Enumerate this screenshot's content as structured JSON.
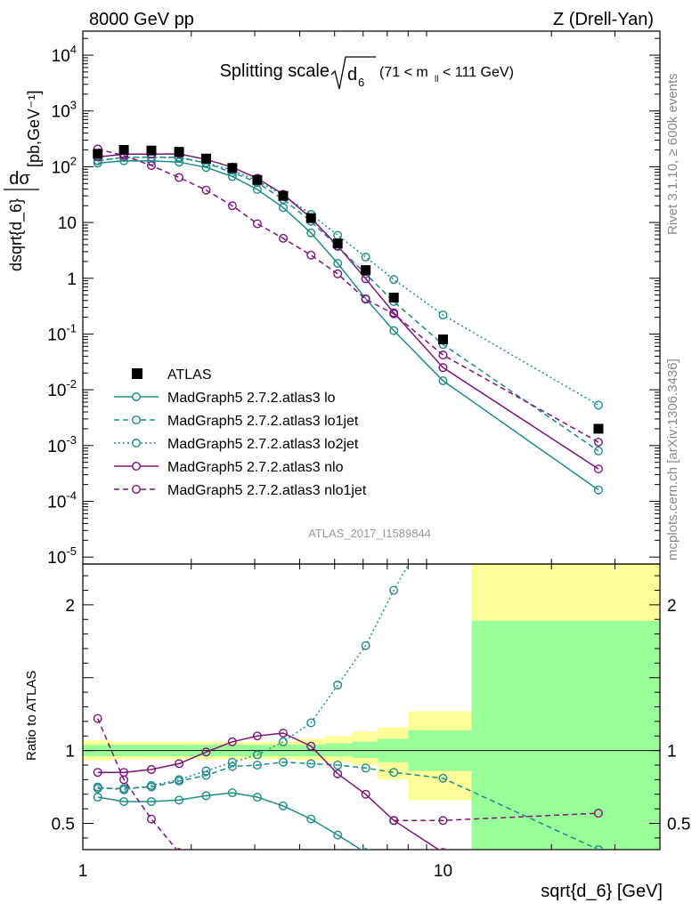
{
  "header": {
    "left": "8000 GeV pp",
    "right": "Z (Drell-Yan)"
  },
  "title": {
    "main": "Splitting scale",
    "sqrt_arg": "d",
    "sqrt_sub": "6",
    "range_pre": "(71 < m",
    "range_sub": "ll",
    "range_post": " < 111 GeV)"
  },
  "side_text": {
    "rivet": "Rivet 3.1.10, ≥ 600k events",
    "mcplots": "mcplots.cern.ch [arXiv:1306.3436]"
  },
  "analysis_id": "ATLAS_2017_I1589844",
  "axes": {
    "xlabel": "sqrt{d_6} [GeV]",
    "ylabel_top": "dσ / dsqrt{d_6} [pb,GeV⁻¹]",
    "ylabel_bottom": "Ratio to ATLAS"
  },
  "legend": [
    "ATLAS",
    "MadGraph5 2.7.2.atlas3 lo",
    "MadGraph5 2.7.2.atlas3 lo1jet",
    "MadGraph5 2.7.2.atlas3 lo2jet",
    "MadGraph5 2.7.2.atlas3 nlo",
    "MadGraph5 2.7.2.atlas3 nlo1jet"
  ],
  "colors": {
    "teal": "#1f8a8a",
    "purple": "#7a147a",
    "band_yellow": "#ffff99",
    "band_green": "#99ff99"
  },
  "chart_data": [
    {
      "type": "line",
      "panel": "main",
      "xscale": "log",
      "yscale": "log",
      "xlim": [
        1,
        40
      ],
      "ylim": [
        7.5e-06,
        27000
      ],
      "x_ticks": [
        "1",
        "10"
      ],
      "y_ticks": [
        "10^-5",
        "10^-4",
        "10^-3",
        "10^-2",
        "10^-1",
        "1",
        "10",
        "10^2",
        "10^3",
        "10^4"
      ],
      "x": [
        1.1,
        1.3,
        1.55,
        1.85,
        2.2,
        2.6,
        3.05,
        3.6,
        4.3,
        5.1,
        6.1,
        7.3,
        10.0,
        27.0
      ],
      "series": [
        {
          "name": "ATLAS",
          "style": "data",
          "values": [
            170,
            200,
            195,
            185,
            140,
            95,
            58,
            30,
            12,
            4.2,
            1.4,
            0.45,
            0.08,
            0.002
          ]
        },
        {
          "name": "MadGraph5 2.7.2.atlas3 lo",
          "color": "teal",
          "dash": "solid",
          "values": [
            116,
            128,
            127,
            121,
            97,
            67,
            39,
            18.5,
            6.5,
            1.85,
            0.43,
            0.115,
            0.0145,
            0.00016
          ]
        },
        {
          "name": "MadGraph5 2.7.2.atlas3 lo1jet",
          "color": "teal",
          "dash": "dashed",
          "values": [
            128,
            148,
            148,
            148,
            116,
            79,
            52,
            26,
            10.5,
            3.7,
            1.2,
            0.38,
            0.065,
            0.0008
          ]
        },
        {
          "name": "MadGraph5 2.7.2.atlas3 lo2jet",
          "color": "teal",
          "dash": "dotted",
          "values": [
            128,
            146,
            148,
            143,
            118,
            87,
            56,
            31,
            14,
            5.9,
            2.4,
            0.95,
            0.22,
            0.0053
          ]
        },
        {
          "name": "MadGraph5 2.7.2.atlas3 nlo",
          "color": "purple",
          "dash": "solid",
          "values": [
            150,
            168,
            168,
            170,
            135,
            98,
            62,
            32,
            12,
            3.8,
            0.98,
            0.24,
            0.025,
            0.00038
          ]
        },
        {
          "name": "MadGraph5 2.7.2.atlas3 nlo1jet",
          "color": "purple",
          "dash": "dashed",
          "values": [
            208,
            158,
            105,
            64,
            38,
            20,
            9.5,
            5.2,
            2.6,
            1.2,
            0.42,
            0.23,
            0.042,
            0.00115
          ]
        }
      ]
    },
    {
      "type": "line",
      "panel": "ratio",
      "xscale": "log",
      "yscale": "linear",
      "xlim": [
        1,
        40
      ],
      "ylim": [
        0.32,
        2.28
      ],
      "y_ticks": [
        "0.5",
        "1",
        "2"
      ],
      "x_ticks": [
        "1",
        "10"
      ],
      "bins": [
        1.0,
        1.2,
        1.4,
        1.7,
        2.0,
        2.4,
        2.8,
        3.3,
        3.9,
        4.7,
        5.6,
        6.6,
        8.0,
        12.0,
        40.0
      ],
      "band_yellow_low": [
        0.93,
        0.94,
        0.94,
        0.94,
        0.94,
        0.94,
        0.94,
        0.94,
        0.93,
        0.92,
        0.9,
        0.8,
        0.66,
        0.3
      ],
      "band_yellow_high": [
        1.07,
        1.06,
        1.06,
        1.06,
        1.06,
        1.06,
        1.06,
        1.06,
        1.08,
        1.1,
        1.13,
        1.16,
        1.27,
        2.28
      ],
      "band_green_low": [
        0.96,
        0.96,
        0.96,
        0.96,
        0.96,
        0.96,
        0.96,
        0.96,
        0.96,
        0.96,
        0.95,
        0.92,
        0.86,
        0.3
      ],
      "band_green_high": [
        1.04,
        1.04,
        1.04,
        1.04,
        1.04,
        1.04,
        1.04,
        1.04,
        1.04,
        1.05,
        1.06,
        1.08,
        1.14,
        1.89
      ],
      "x": [
        1.1,
        1.3,
        1.55,
        1.85,
        2.2,
        2.6,
        3.05,
        3.6,
        4.3,
        5.1,
        6.1,
        7.3,
        10.0,
        27.0
      ],
      "series": [
        {
          "name": "MadGraph5 2.7.2.atlas3 lo",
          "color": "teal",
          "dash": "solid",
          "values": [
            0.68,
            0.65,
            0.65,
            0.66,
            0.69,
            0.71,
            0.68,
            0.62,
            0.53,
            0.42,
            0.3,
            null,
            null,
            null
          ]
        },
        {
          "name": "MadGraph5 2.7.2.atlas3 lo1jet",
          "color": "teal",
          "dash": "dashed",
          "values": [
            0.74,
            0.74,
            0.75,
            0.79,
            0.83,
            0.89,
            0.9,
            0.92,
            0.91,
            0.9,
            0.88,
            0.85,
            0.81,
            0.32
          ]
        },
        {
          "name": "MadGraph5 2.7.2.atlas3 lo2jet",
          "color": "teal",
          "dash": "dotted",
          "values": [
            0.75,
            0.73,
            0.76,
            0.8,
            0.86,
            0.92,
            0.97,
            1.06,
            1.19,
            1.45,
            1.72,
            2.1,
            2.7,
            null
          ]
        },
        {
          "name": "MadGraph5 2.7.2.atlas3 nlo",
          "color": "purple",
          "dash": "solid",
          "values": [
            0.85,
            0.85,
            0.87,
            0.91,
            0.99,
            1.06,
            1.1,
            1.12,
            1.03,
            0.84,
            0.7,
            0.52,
            0.3,
            null
          ]
        },
        {
          "name": "MadGraph5 2.7.2.atlas3 nlo1jet",
          "color": "purple",
          "dash": "dashed",
          "values": [
            1.22,
            0.8,
            0.53,
            0.3,
            null,
            null,
            null,
            null,
            null,
            null,
            null,
            0.52,
            0.52,
            0.57
          ]
        }
      ]
    }
  ]
}
